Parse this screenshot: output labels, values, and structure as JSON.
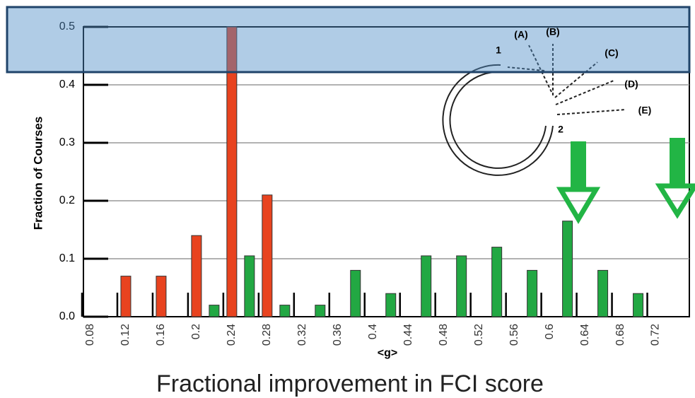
{
  "chart_data": {
    "type": "bar",
    "ylabel": "Fraction of Courses",
    "xlabel": "Fractional improvement in FCI score",
    "axis_symbol": "<g>",
    "annotations": [
      "(A)",
      "(B)",
      "(C)",
      "(D)",
      "(E)",
      "1",
      "2"
    ],
    "series": [
      {
        "color": "#e8431f",
        "x": [
          0.12,
          0.16,
          0.2,
          0.24,
          0.28
        ],
        "values": [
          0.07,
          0.07,
          0.14,
          0.5,
          0.21
        ]
      },
      {
        "color": "#22a843",
        "x": [
          0.22,
          0.26,
          0.3,
          0.34,
          0.38,
          0.42,
          0.46,
          0.5,
          0.54,
          0.58,
          0.62,
          0.66,
          0.7
        ],
        "values": [
          0.02,
          0.105,
          0.02,
          0.02,
          0.08,
          0.04,
          0.105,
          0.105,
          0.12,
          0.08,
          0.165,
          0.08,
          0.04
        ]
      }
    ],
    "xlim": [
      0.072,
      0.758
    ],
    "ylim": [
      0,
      0.5
    ],
    "xticks": [
      0.08,
      0.12,
      0.16,
      0.2,
      0.24,
      0.28,
      0.32,
      0.36,
      0.4,
      0.44,
      0.48,
      0.52,
      0.56,
      0.6,
      0.64,
      0.68,
      0.72
    ],
    "yticks": [
      {
        "value": 0,
        "label": "0.0"
      },
      0.1,
      0.2,
      0.3,
      0.4,
      0.5
    ],
    "grid": true
  }
}
